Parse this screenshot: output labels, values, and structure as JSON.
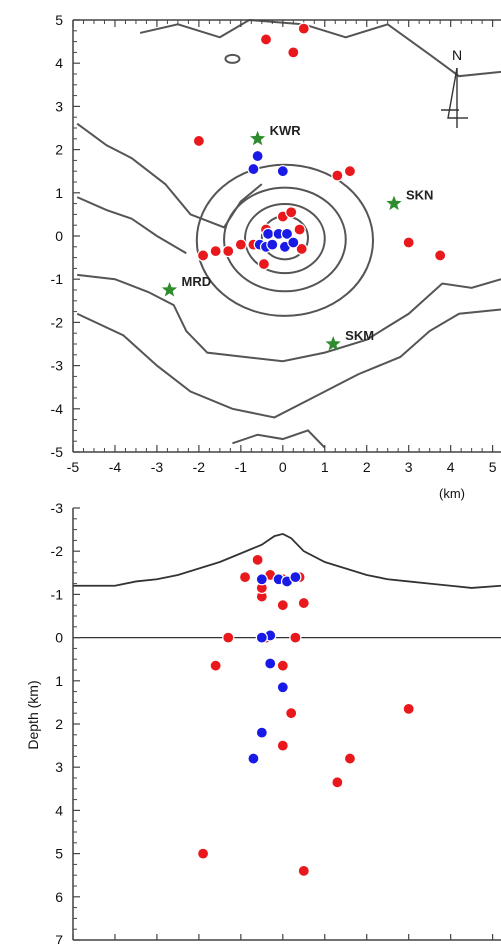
{
  "chart_data": [
    {
      "type": "scatter",
      "panel": "map",
      "xlim": [
        -5,
        5.2
      ],
      "ylim": [
        -5,
        5
      ],
      "x_ticks": [
        "-5",
        "-4",
        "-3",
        "-2",
        "-1",
        "0",
        "1",
        "2",
        "3",
        "4",
        "5"
      ],
      "y_ticks": [
        "5",
        "4",
        "3",
        "2",
        "1",
        "0",
        "-1",
        "-2",
        "-3",
        "-4",
        "-5"
      ],
      "x_unit": "(km)",
      "north_label": "N",
      "stations": [
        {
          "name": "KWR",
          "x": -0.6,
          "y": 2.25
        },
        {
          "name": "SKN",
          "x": 2.65,
          "y": 0.75
        },
        {
          "name": "MRD",
          "x": -2.7,
          "y": -1.25
        },
        {
          "name": "SKM",
          "x": 1.2,
          "y": -2.5
        }
      ],
      "series": [
        {
          "color": "#e8181c",
          "points": [
            [
              -0.4,
              4.55
            ],
            [
              0.5,
              4.8
            ],
            [
              0.25,
              4.25
            ],
            [
              -2.0,
              2.2
            ],
            [
              1.3,
              1.4
            ],
            [
              1.6,
              1.5
            ],
            [
              0.0,
              0.45
            ],
            [
              0.2,
              0.55
            ],
            [
              -0.4,
              0.15
            ],
            [
              0.4,
              0.15
            ],
            [
              -0.7,
              -0.2
            ],
            [
              -1.0,
              -0.2
            ],
            [
              -1.3,
              -0.35
            ],
            [
              -1.6,
              -0.35
            ],
            [
              -1.9,
              -0.45
            ],
            [
              0.45,
              -0.3
            ],
            [
              -0.45,
              -0.65
            ],
            [
              3.0,
              -0.15
            ],
            [
              3.75,
              -0.45
            ]
          ]
        },
        {
          "color": "#1a1ae6",
          "points": [
            [
              -0.6,
              1.85
            ],
            [
              -0.7,
              1.55
            ],
            [
              0.0,
              1.5
            ],
            [
              -0.35,
              0.05
            ],
            [
              -0.1,
              0.05
            ],
            [
              0.1,
              0.05
            ],
            [
              -0.55,
              -0.2
            ],
            [
              -0.4,
              -0.25
            ],
            [
              -0.25,
              -0.2
            ],
            [
              0.05,
              -0.25
            ],
            [
              0.25,
              -0.15
            ]
          ]
        }
      ]
    },
    {
      "type": "scatter",
      "panel": "cross-section",
      "xlim": [
        -5,
        5.2
      ],
      "ylim": [
        -3,
        7
      ],
      "ylabel": "Depth (km)",
      "y_ticks": [
        "-3",
        "-2",
        "-1",
        "0",
        "1",
        "2",
        "3",
        "4",
        "5",
        "6",
        "7"
      ],
      "topography": [
        [
          -5,
          -1.2
        ],
        [
          -4.5,
          -1.2
        ],
        [
          -4,
          -1.2
        ],
        [
          -3.5,
          -1.3
        ],
        [
          -3,
          -1.35
        ],
        [
          -2.5,
          -1.45
        ],
        [
          -2,
          -1.6
        ],
        [
          -1.5,
          -1.75
        ],
        [
          -1,
          -1.95
        ],
        [
          -0.5,
          -2.15
        ],
        [
          -0.2,
          -2.35
        ],
        [
          0,
          -2.4
        ],
        [
          0.2,
          -2.3
        ],
        [
          0.5,
          -2.0
        ],
        [
          1,
          -1.75
        ],
        [
          1.5,
          -1.6
        ],
        [
          2,
          -1.45
        ],
        [
          2.5,
          -1.35
        ],
        [
          3,
          -1.3
        ],
        [
          3.5,
          -1.25
        ],
        [
          4,
          -1.2
        ],
        [
          4.5,
          -1.15
        ],
        [
          5.2,
          -1.2
        ]
      ],
      "series": [
        {
          "color": "#e8181c",
          "points": [
            [
              -0.6,
              -1.8
            ],
            [
              -0.9,
              -1.4
            ],
            [
              -0.3,
              -1.45
            ],
            [
              0.0,
              -1.35
            ],
            [
              0.4,
              -1.4
            ],
            [
              -0.5,
              -0.95
            ],
            [
              -0.5,
              -1.15
            ],
            [
              0.0,
              -0.75
            ],
            [
              0.5,
              -0.8
            ],
            [
              -1.3,
              0.0
            ],
            [
              -0.4,
              0.0
            ],
            [
              0.3,
              0.0
            ],
            [
              -1.6,
              0.65
            ],
            [
              0.0,
              0.65
            ],
            [
              0.2,
              1.75
            ],
            [
              3.0,
              1.65
            ],
            [
              0.0,
              2.5
            ],
            [
              1.6,
              2.8
            ],
            [
              1.3,
              3.35
            ],
            [
              -1.9,
              5.0
            ],
            [
              0.5,
              5.4
            ]
          ]
        },
        {
          "color": "#1a1ae6",
          "points": [
            [
              -0.5,
              -1.35
            ],
            [
              -0.1,
              -1.35
            ],
            [
              0.1,
              -1.3
            ],
            [
              0.3,
              -1.4
            ],
            [
              -0.3,
              -0.05
            ],
            [
              -0.5,
              0.0
            ],
            [
              -0.3,
              0.6
            ],
            [
              0.0,
              1.15
            ],
            [
              -0.5,
              2.2
            ],
            [
              -0.7,
              2.8
            ]
          ]
        }
      ]
    }
  ]
}
